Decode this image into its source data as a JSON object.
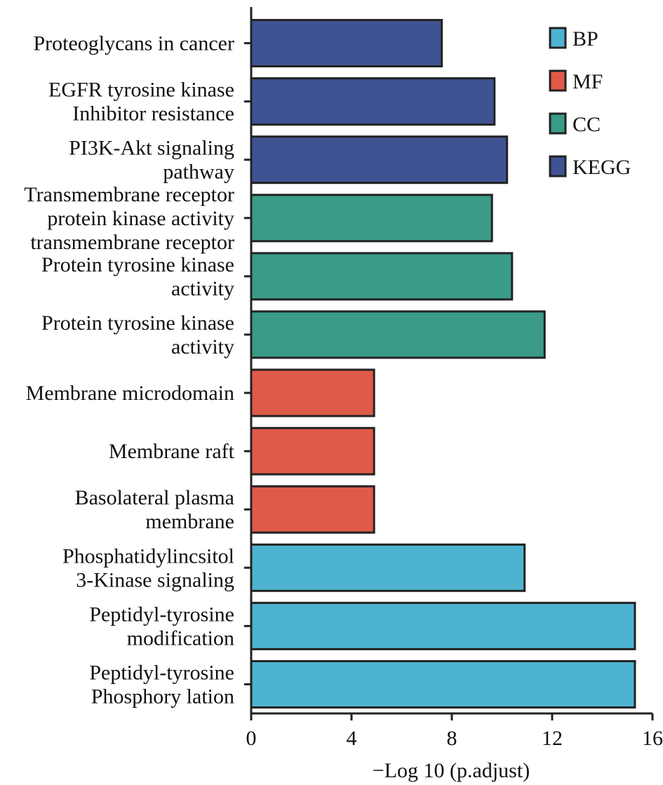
{
  "chart_data": {
    "type": "bar",
    "orientation": "horizontal",
    "categories": [
      [
        "Proteoglycans in cancer"
      ],
      [
        "EGFR tyrosine kinase",
        "Inhibitor resistance"
      ],
      [
        "PI3K-Akt signaling",
        "pathway"
      ],
      [
        "Transmembrane receptor",
        "protein kinase activity",
        "transmembrane receptor"
      ],
      [
        "Protein tyrosine kinase",
        "activity"
      ],
      [
        "Protein tyrosine kinase",
        "activity"
      ],
      [
        "Membrane microdomain"
      ],
      [
        "Membrane raft"
      ],
      [
        "Basolateral plasma",
        "membrane"
      ],
      [
        "Phosphatidylincsitol",
        "3-Kinase signaling"
      ],
      [
        "Peptidyl-tyrosine",
        "modification"
      ],
      [
        "Peptidyl-tyrosine",
        "Phosphory lation"
      ]
    ],
    "values": [
      7.6,
      9.7,
      10.2,
      9.6,
      10.4,
      11.7,
      4.9,
      4.9,
      4.9,
      10.9,
      15.3,
      15.3
    ],
    "groups": [
      "KEGG",
      "KEGG",
      "KEGG",
      "CC",
      "CC",
      "CC",
      "MF",
      "MF",
      "MF",
      "BP",
      "BP",
      "BP"
    ],
    "legend": [
      {
        "name": "BP",
        "color": "#4eb3d1"
      },
      {
        "name": "MF",
        "color": "#e05a4a"
      },
      {
        "name": "CC",
        "color": "#3a9c87"
      },
      {
        "name": "KEGG",
        "color": "#3f5392"
      }
    ],
    "legend_position": "top-right",
    "xlabel": "−Log 10 (p.adjust)",
    "xticks": [
      "0",
      "4",
      "8",
      "12",
      "16"
    ],
    "xlim": [
      0,
      16
    ],
    "grid": false
  }
}
